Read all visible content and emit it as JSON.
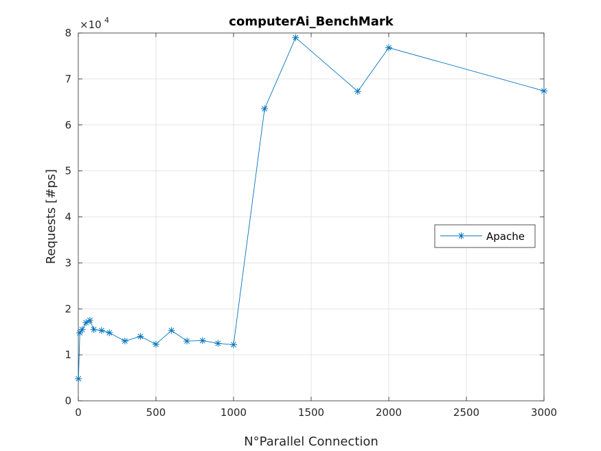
{
  "chart_data": {
    "type": "line",
    "title": "computerAi_BenchMark",
    "xlabel": "N°Parallel Connection",
    "ylabel": "Requests [#ps]",
    "xlim": [
      0,
      3000
    ],
    "ylim": [
      0,
      80000
    ],
    "x_ticks": [
      0,
      500,
      1000,
      1500,
      2000,
      2500,
      3000
    ],
    "y_ticks": [
      0,
      10000,
      20000,
      30000,
      40000,
      50000,
      60000,
      70000,
      80000
    ],
    "y_tick_labels": [
      "0",
      "1",
      "2",
      "3",
      "4",
      "5",
      "6",
      "7",
      "8"
    ],
    "y_exponent": {
      "base": "×10",
      "power": "4"
    },
    "grid": true,
    "legend_position": "right",
    "series": [
      {
        "name": "Apache",
        "color": "#0072BD",
        "marker": "asterisk",
        "x": [
          1,
          10,
          25,
          50,
          75,
          100,
          150,
          200,
          300,
          400,
          500,
          600,
          700,
          800,
          900,
          1000,
          1200,
          1400,
          1800,
          2000,
          3000
        ],
        "y": [
          4800,
          14800,
          15500,
          17000,
          17500,
          15500,
          15300,
          14800,
          13000,
          14000,
          12300,
          15300,
          13000,
          13100,
          12500,
          12200,
          63500,
          79000,
          67300,
          76800,
          67400
        ]
      }
    ]
  }
}
